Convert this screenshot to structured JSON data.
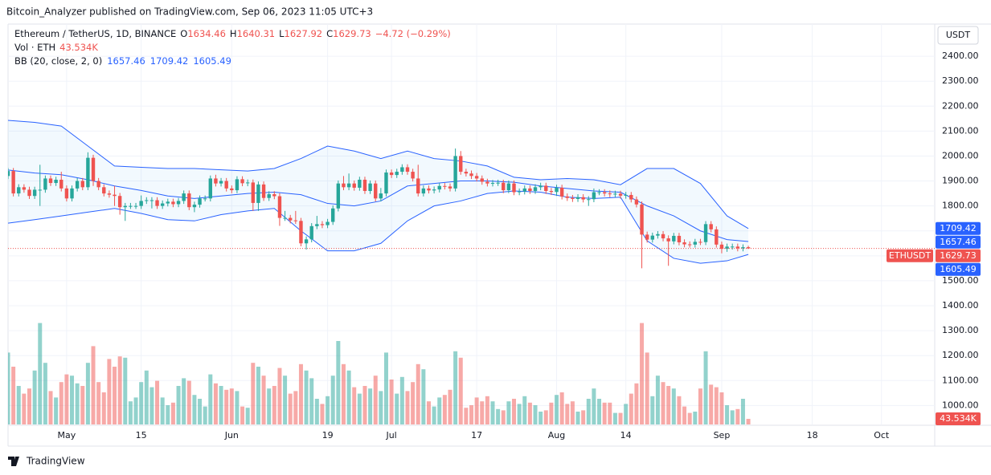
{
  "header": {
    "text": "Bitcoin_Analyzer published on TradingView.com, Sep 06, 2023 11:05 UTC+3"
  },
  "footer": {
    "brand": "TradingView"
  },
  "chart_data": {
    "type": "candlestick",
    "symbol": "Ethereum / TetherUS, 1D, BINANCE",
    "ohlc_prefixes": [
      "O",
      "H",
      "L",
      "C"
    ],
    "change_label": "−4.72 (−0.29%)",
    "currency": "USDT",
    "ticker": "ETHUSDT",
    "up_color": "#26a69a",
    "down_color": "#ef5350",
    "grid": true,
    "xlim": [
      "2023-04-20",
      "2023-10-11"
    ],
    "xticks": [
      {
        "value": "2023-05-01",
        "label": "May"
      },
      {
        "value": "2023-05-15",
        "label": "15"
      },
      {
        "value": "2023-06-01",
        "label": "Jun"
      },
      {
        "value": "2023-06-19",
        "label": "19"
      },
      {
        "value": "2023-07-01",
        "label": "Jul"
      },
      {
        "value": "2023-07-17",
        "label": "17"
      },
      {
        "value": "2023-08-01",
        "label": "Aug"
      },
      {
        "value": "2023-08-14",
        "label": "14"
      },
      {
        "value": "2023-09-01",
        "label": "Sep"
      },
      {
        "value": "2023-09-18",
        "label": "18"
      },
      {
        "value": "2023-10-01",
        "label": "Oct"
      }
    ],
    "ylim": [
      924,
      2529
    ],
    "yticks": [
      {
        "value": 1000,
        "label": "1000.00"
      },
      {
        "value": 1100,
        "label": "1100.00"
      },
      {
        "value": 1200,
        "label": "1200.00"
      },
      {
        "value": 1300,
        "label": "1300.00"
      },
      {
        "value": 1400,
        "label": "1400.00"
      },
      {
        "value": 1500,
        "label": "1500.00"
      },
      {
        "value": 1600,
        "label": "1600.00"
      },
      {
        "value": 1700,
        "label": "1700.00"
      },
      {
        "value": 1800,
        "label": "1800.00"
      },
      {
        "value": 1900,
        "label": "1900.00"
      },
      {
        "value": 2000,
        "label": "2000.00"
      },
      {
        "value": 2100,
        "label": "2100.00"
      },
      {
        "value": 2200,
        "label": "2200.00"
      },
      {
        "value": 2300,
        "label": "2300.00"
      },
      {
        "value": 2400,
        "label": "2400.00"
      }
    ],
    "x": [
      "2023-04-20",
      "2023-04-21",
      "2023-04-22",
      "2023-04-23",
      "2023-04-24",
      "2023-04-25",
      "2023-04-26",
      "2023-04-27",
      "2023-04-28",
      "2023-04-29",
      "2023-04-30",
      "2023-05-01",
      "2023-05-02",
      "2023-05-03",
      "2023-05-04",
      "2023-05-05",
      "2023-05-06",
      "2023-05-07",
      "2023-05-08",
      "2023-05-09",
      "2023-05-10",
      "2023-05-11",
      "2023-05-12",
      "2023-05-13",
      "2023-05-14",
      "2023-05-15",
      "2023-05-16",
      "2023-05-17",
      "2023-05-18",
      "2023-05-19",
      "2023-05-20",
      "2023-05-21",
      "2023-05-22",
      "2023-05-23",
      "2023-05-24",
      "2023-05-25",
      "2023-05-26",
      "2023-05-27",
      "2023-05-28",
      "2023-05-29",
      "2023-05-30",
      "2023-05-31",
      "2023-06-01",
      "2023-06-02",
      "2023-06-03",
      "2023-06-04",
      "2023-06-05",
      "2023-06-06",
      "2023-06-07",
      "2023-06-08",
      "2023-06-09",
      "2023-06-10",
      "2023-06-11",
      "2023-06-12",
      "2023-06-13",
      "2023-06-14",
      "2023-06-15",
      "2023-06-16",
      "2023-06-17",
      "2023-06-18",
      "2023-06-19",
      "2023-06-20",
      "2023-06-21",
      "2023-06-22",
      "2023-06-23",
      "2023-06-24",
      "2023-06-25",
      "2023-06-26",
      "2023-06-27",
      "2023-06-28",
      "2023-06-29",
      "2023-06-30",
      "2023-07-01",
      "2023-07-02",
      "2023-07-03",
      "2023-07-04",
      "2023-07-05",
      "2023-07-06",
      "2023-07-07",
      "2023-07-08",
      "2023-07-09",
      "2023-07-10",
      "2023-07-11",
      "2023-07-12",
      "2023-07-13",
      "2023-07-14",
      "2023-07-15",
      "2023-07-16",
      "2023-07-17",
      "2023-07-18",
      "2023-07-19",
      "2023-07-20",
      "2023-07-21",
      "2023-07-22",
      "2023-07-23",
      "2023-07-24",
      "2023-07-25",
      "2023-07-26",
      "2023-07-27",
      "2023-07-28",
      "2023-07-29",
      "2023-07-30",
      "2023-07-31",
      "2023-08-01",
      "2023-08-02",
      "2023-08-03",
      "2023-08-04",
      "2023-08-05",
      "2023-08-06",
      "2023-08-07",
      "2023-08-08",
      "2023-08-09",
      "2023-08-10",
      "2023-08-11",
      "2023-08-12",
      "2023-08-13",
      "2023-08-14",
      "2023-08-15",
      "2023-08-16",
      "2023-08-17",
      "2023-08-18",
      "2023-08-19",
      "2023-08-20",
      "2023-08-21",
      "2023-08-22",
      "2023-08-23",
      "2023-08-24",
      "2023-08-25",
      "2023-08-26",
      "2023-08-27",
      "2023-08-28",
      "2023-08-29",
      "2023-08-30",
      "2023-08-31",
      "2023-09-01",
      "2023-09-02",
      "2023-09-03",
      "2023-09-04",
      "2023-09-05",
      "2023-09-06"
    ],
    "open": [
      1920,
      1940,
      1850,
      1875,
      1865,
      1840,
      1865,
      1865,
      1910,
      1892,
      1905,
      1870,
      1830,
      1870,
      1900,
      1875,
      1993,
      1900,
      1875,
      1850,
      1845,
      1840,
      1795,
      1800,
      1800,
      1800,
      1820,
      1823,
      1823,
      1800,
      1810,
      1817,
      1807,
      1820,
      1850,
      1795,
      1805,
      1830,
      1830,
      1910,
      1890,
      1900,
      1870,
      1863,
      1907,
      1891,
      1894,
      1812,
      1886,
      1832,
      1847,
      1839,
      1752,
      1752,
      1742,
      1740,
      1650,
      1666,
      1719,
      1727,
      1723,
      1736,
      1790,
      1890,
      1875,
      1890,
      1873,
      1905,
      1860,
      1890,
      1830,
      1850,
      1934,
      1924,
      1937,
      1955,
      1937,
      1910,
      1850,
      1870,
      1862,
      1866,
      1880,
      1878,
      1870,
      2000,
      1937,
      1930,
      1920,
      1910,
      1897,
      1890,
      1892,
      1893,
      1863,
      1890,
      1855,
      1858,
      1870,
      1860,
      1875,
      1881,
      1860,
      1856,
      1873,
      1838,
      1832,
      1828,
      1835,
      1826,
      1827,
      1855,
      1855,
      1850,
      1847,
      1849,
      1841,
      1844,
      1826,
      1806,
      1685,
      1665,
      1681,
      1687,
      1670,
      1658,
      1680,
      1654,
      1646,
      1645,
      1656,
      1655,
      1727,
      1706,
      1645,
      1628,
      1637,
      1637,
      1630,
      1634.46
    ],
    "high": [
      1952,
      1952,
      1887,
      1887,
      1877,
      1877,
      1965,
      1922,
      1922,
      1917,
      1937,
      1882,
      1882,
      1912,
      1912,
      2015,
      2005,
      1912,
      1887,
      1862,
      1880,
      1852,
      1812,
      1812,
      1812,
      1842,
      1835,
      1835,
      1835,
      1822,
      1829,
      1829,
      1832,
      1862,
      1862,
      1817,
      1842,
      1842,
      1922,
      1925,
      1912,
      1912,
      1882,
      1919,
      1919,
      1906,
      1906,
      1898,
      1898,
      1859,
      1859,
      1851,
      1780,
      1764,
      1780,
      1752,
      1678,
      1731,
      1760,
      1739,
      1748,
      1802,
      1902,
      1920,
      1930,
      1902,
      1917,
      1917,
      1902,
      1902,
      1872,
      1946,
      1946,
      1949,
      1967,
      1967,
      1949,
      1965,
      1882,
      1882,
      1878,
      1892,
      1892,
      1890,
      2030,
      2020,
      1949,
      1942,
      1932,
      1922,
      1909,
      1904,
      1905,
      1905,
      1902,
      1902,
      1870,
      1882,
      1882,
      1887,
      1893,
      1893,
      1872,
      1885,
      1885,
      1850,
      1844,
      1847,
      1847,
      1839,
      1870,
      1867,
      1867,
      1862,
      1861,
      1861,
      1856,
      1856,
      1838,
      1818,
      1697,
      1693,
      1699,
      1699,
      1682,
      1692,
      1692,
      1666,
      1658,
      1668,
      1668,
      1739,
      1739,
      1718,
      1657,
      1649,
      1649,
      1649,
      1646,
      1640.31
    ],
    "low": [
      1908,
      1838,
      1838,
      1853,
      1828,
      1828,
      1800,
      1853,
      1880,
      1880,
      1858,
      1818,
      1818,
      1858,
      1863,
      1863,
      1880,
      1863,
      1838,
      1833,
      1800,
      1765,
      1740,
      1788,
      1788,
      1788,
      1808,
      1790,
      1788,
      1788,
      1798,
      1795,
      1795,
      1808,
      1783,
      1775,
      1793,
      1818,
      1818,
      1878,
      1878,
      1858,
      1851,
      1851,
      1879,
      1879,
      1780,
      1780,
      1820,
      1820,
      1827,
      1720,
      1740,
      1730,
      1728,
      1638,
      1625,
      1654,
      1707,
      1711,
      1711,
      1724,
      1778,
      1863,
      1863,
      1861,
      1861,
      1848,
      1848,
      1818,
      1818,
      1838,
      1912,
      1912,
      1925,
      1925,
      1898,
      1838,
      1838,
      1850,
      1850,
      1854,
      1866,
      1858,
      1858,
      1925,
      1918,
      1908,
      1898,
      1885,
      1878,
      1878,
      1880,
      1851,
      1851,
      1843,
      1843,
      1846,
      1848,
      1848,
      1863,
      1848,
      1844,
      1840,
      1826,
      1820,
      1816,
      1816,
      1814,
      1800,
      1815,
      1843,
      1838,
      1835,
      1835,
      1829,
      1829,
      1814,
      1794,
      1550,
      1653,
      1653,
      1669,
      1658,
      1560,
      1646,
      1642,
      1634,
      1633,
      1633,
      1643,
      1643,
      1694,
      1633,
      1610,
      1616,
      1625,
      1618,
      1618,
      1627.92
    ],
    "close": [
      1940,
      1850,
      1875,
      1865,
      1840,
      1865,
      1865,
      1910,
      1892,
      1905,
      1870,
      1830,
      1870,
      1900,
      1875,
      1993,
      1900,
      1875,
      1850,
      1845,
      1840,
      1795,
      1800,
      1800,
      1800,
      1820,
      1823,
      1823,
      1800,
      1810,
      1817,
      1807,
      1820,
      1850,
      1795,
      1805,
      1830,
      1830,
      1910,
      1890,
      1900,
      1870,
      1863,
      1907,
      1891,
      1894,
      1812,
      1886,
      1832,
      1847,
      1839,
      1752,
      1752,
      1742,
      1740,
      1650,
      1666,
      1719,
      1727,
      1723,
      1736,
      1790,
      1890,
      1875,
      1890,
      1873,
      1905,
      1860,
      1890,
      1830,
      1850,
      1934,
      1924,
      1937,
      1955,
      1937,
      1910,
      1850,
      1870,
      1862,
      1866,
      1880,
      1878,
      1870,
      2000,
      1937,
      1930,
      1920,
      1910,
      1897,
      1890,
      1892,
      1893,
      1863,
      1890,
      1855,
      1858,
      1870,
      1860,
      1875,
      1881,
      1860,
      1856,
      1873,
      1838,
      1832,
      1828,
      1835,
      1826,
      1827,
      1855,
      1855,
      1850,
      1847,
      1849,
      1841,
      1844,
      1826,
      1806,
      1685,
      1665,
      1681,
      1687,
      1670,
      1658,
      1680,
      1654,
      1646,
      1645,
      1656,
      1655,
      1727,
      1706,
      1645,
      1628,
      1637,
      1637,
      1630,
      1634.46,
      1629.73
    ],
    "volume": {
      "name": "Vol · ETH",
      "last_label": "43.534K",
      "values": [
        560,
        450,
        300,
        240,
        280,
        420,
        790,
        480,
        260,
        210,
        330,
        390,
        380,
        320,
        300,
        480,
        610,
        330,
        250,
        510,
        450,
        530,
        520,
        180,
        210,
        330,
        420,
        290,
        340,
        210,
        150,
        170,
        300,
        360,
        340,
        230,
        200,
        140,
        390,
        320,
        300,
        270,
        280,
        260,
        140,
        130,
        480,
        450,
        380,
        280,
        300,
        440,
        380,
        240,
        260,
        470,
        420,
        360,
        200,
        160,
        220,
        380,
        650,
        470,
        420,
        290,
        240,
        300,
        280,
        380,
        260,
        560,
        350,
        240,
        370,
        260,
        330,
        470,
        430,
        180,
        140,
        210,
        230,
        270,
        570,
        520,
        130,
        150,
        210,
        180,
        220,
        180,
        120,
        110,
        180,
        200,
        160,
        220,
        170,
        150,
        100,
        110,
        170,
        230,
        250,
        160,
        180,
        100,
        110,
        200,
        280,
        200,
        170,
        170,
        90,
        90,
        160,
        240,
        320,
        790,
        560,
        220,
        380,
        330,
        300,
        280,
        220,
        140,
        90,
        100,
        280,
        570,
        310,
        290,
        250,
        150,
        110,
        120,
        200,
        43.534
      ]
    },
    "bollinger": {
      "label": "BB (20, close, 2, 0)",
      "color": "#2962ff",
      "x": [
        "2023-04-20",
        "2023-04-25",
        "2023-04-30",
        "2023-05-05",
        "2023-05-10",
        "2023-05-15",
        "2023-05-20",
        "2023-05-25",
        "2023-05-30",
        "2023-06-04",
        "2023-06-09",
        "2023-06-14",
        "2023-06-19",
        "2023-06-24",
        "2023-06-29",
        "2023-07-04",
        "2023-07-09",
        "2023-07-14",
        "2023-07-19",
        "2023-07-24",
        "2023-07-29",
        "2023-08-03",
        "2023-08-08",
        "2023-08-13",
        "2023-08-18",
        "2023-08-23",
        "2023-08-28",
        "2023-09-02",
        "2023-09-06"
      ],
      "middle": [
        1944,
        1932,
        1925,
        1905,
        1880,
        1862,
        1840,
        1830,
        1840,
        1850,
        1855,
        1845,
        1810,
        1800,
        1820,
        1880,
        1890,
        1900,
        1900,
        1895,
        1880,
        1870,
        1860,
        1855,
        1800,
        1760,
        1700,
        1665,
        1657.46
      ],
      "upper": [
        2143,
        2135,
        2120,
        2040,
        1960,
        1955,
        1950,
        1950,
        1945,
        1940,
        1950,
        1990,
        2040,
        2020,
        1990,
        2020,
        1990,
        1980,
        1960,
        1915,
        1905,
        1910,
        1905,
        1885,
        1950,
        1950,
        1890,
        1760,
        1709.42
      ],
      "lower": [
        1731,
        1745,
        1760,
        1775,
        1790,
        1770,
        1745,
        1740,
        1765,
        1780,
        1790,
        1700,
        1620,
        1620,
        1650,
        1740,
        1800,
        1820,
        1850,
        1860,
        1855,
        1835,
        1830,
        1835,
        1660,
        1590,
        1570,
        1580,
        1605.49
      ]
    }
  }
}
